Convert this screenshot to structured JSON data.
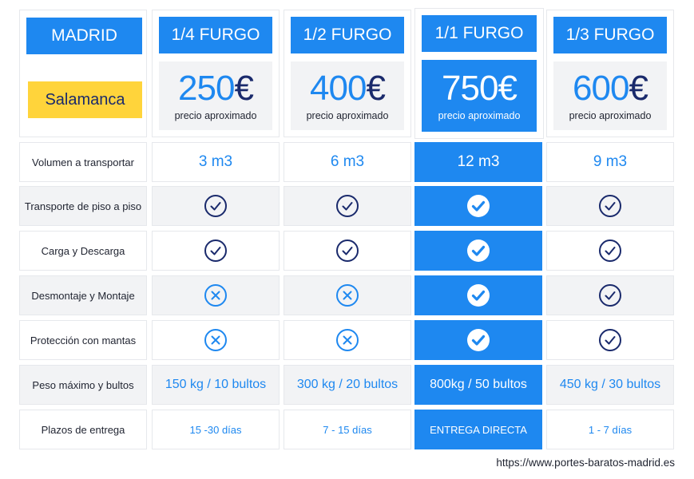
{
  "cities": {
    "origin": "MADRID",
    "destination": "Salamanca"
  },
  "plans": [
    {
      "name": "1/4 FURGO",
      "price": "250",
      "currency": "€",
      "note": "precio aproximado",
      "highlight": false
    },
    {
      "name": "1/2 FURGO",
      "price": "400",
      "currency": "€",
      "note": "precio aproximado",
      "highlight": false
    },
    {
      "name": "1/1 FURGO",
      "price": "750",
      "currency": "€",
      "note": "precio aproximado",
      "highlight": true
    },
    {
      "name": "1/3 FURGO",
      "price": "600",
      "currency": "€",
      "note": "precio aproximado",
      "highlight": false
    }
  ],
  "rows": [
    {
      "label": "Volumen a transportar",
      "kind": "text-large",
      "values": [
        "3 m3",
        "6 m3",
        "12 m3",
        "9 m3"
      ]
    },
    {
      "label": "Transporte de piso a piso",
      "kind": "icon",
      "values": [
        "check",
        "check",
        "check",
        "check"
      ]
    },
    {
      "label": "Carga y Descarga",
      "kind": "icon",
      "values": [
        "check",
        "check",
        "check",
        "check"
      ]
    },
    {
      "label": "Desmontaje y Montaje",
      "kind": "icon",
      "values": [
        "cross",
        "cross",
        "check",
        "check"
      ]
    },
    {
      "label": "Protección con mantas",
      "kind": "icon",
      "values": [
        "cross",
        "cross",
        "check",
        "check"
      ]
    },
    {
      "label": "Peso máximo y bultos",
      "kind": "text-bold",
      "values": [
        "150 kg / 10 bultos",
        "300 kg / 20 bultos",
        "800kg / 50 bultos",
        "450 kg / 30 bultos"
      ]
    },
    {
      "label": "Plazos de entrega",
      "kind": "text-small",
      "values": [
        "15 -30 días",
        "7 - 15 días",
        "ENTREGA DIRECTA",
        "1 - 7 días"
      ]
    }
  ],
  "footer": {
    "url": "https://www.portes-baratos-madrid.es"
  },
  "colors": {
    "accent": "#1e88f0",
    "highlight_border": "#ffd43b",
    "navy": "#1a2a6c",
    "shade": "#f2f3f5"
  }
}
